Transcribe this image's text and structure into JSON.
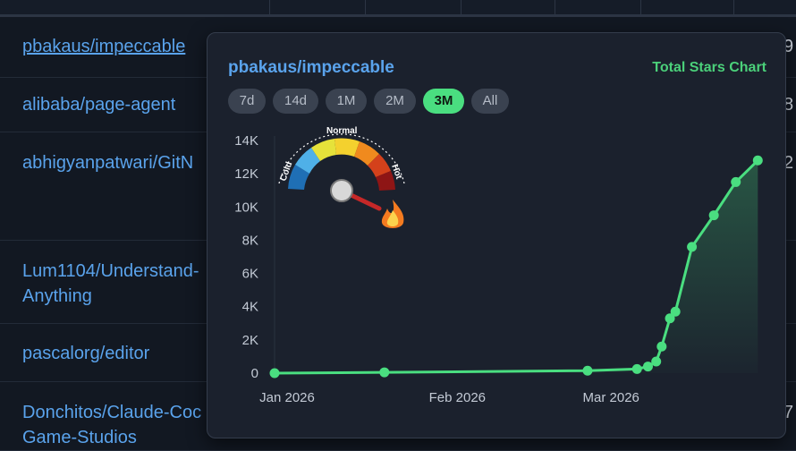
{
  "table": {
    "rows": [
      {
        "repo": "pbakaus/impeccable",
        "num": "9"
      },
      {
        "repo": "alibaba/page-agent",
        "num": "8"
      },
      {
        "repo": "abhigyanpatwari/GitN",
        "num": "2"
      },
      {
        "repo": "Lum1104/Understand-",
        "repo2": "Anything",
        "num": ""
      },
      {
        "repo": "pascalorg/editor",
        "num": ""
      },
      {
        "repo": "Donchitos/Claude-Coc",
        "repo2": "Game-Studios",
        "num": "7"
      }
    ]
  },
  "popup": {
    "title": "pbakaus/impeccable",
    "chart_label": "Total Stars Chart",
    "ranges": [
      "7d",
      "14d",
      "1M",
      "2M",
      "3M",
      "All"
    ],
    "active_range": "3M",
    "gauge": {
      "label_cold": "Cold",
      "label_normal": "Normal",
      "label_hot": "Hot",
      "level": "hot",
      "flame_icon": "flame-icon"
    },
    "colors": {
      "line": "#4ade80",
      "title": "#5aa3ec",
      "accent": "#4bd07a"
    }
  },
  "chart_data": {
    "type": "line",
    "title": "Total Stars Chart",
    "xlabel": "",
    "ylabel": "",
    "x_ticks": [
      "Jan 2026",
      "Feb 2026",
      "Mar 2026"
    ],
    "y_ticks": [
      "0",
      "2K",
      "4K",
      "6K",
      "8K",
      "10K",
      "12K",
      "14K"
    ],
    "ylim": [
      0,
      14000
    ],
    "x_unit": "days since 2026-01-01",
    "xlim": [
      0,
      85
    ],
    "series": [
      {
        "name": "Total Stars",
        "points": [
          [
            0,
            0
          ],
          [
            20,
            50
          ],
          [
            57,
            150
          ],
          [
            66,
            250
          ],
          [
            68,
            400
          ],
          [
            69.5,
            700
          ],
          [
            70.5,
            1600
          ],
          [
            72,
            3300
          ],
          [
            73,
            3700
          ],
          [
            76,
            7600
          ],
          [
            80,
            9500
          ],
          [
            84,
            11500
          ],
          [
            88,
            12800
          ]
        ]
      }
    ],
    "grid": true
  }
}
